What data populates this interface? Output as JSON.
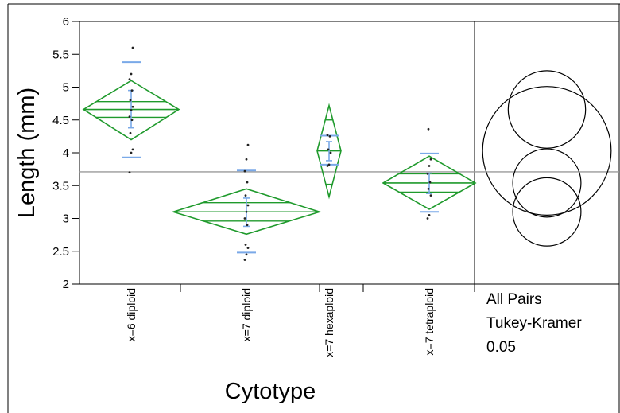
{
  "chart_data": {
    "type": "scatter",
    "xlabel": "Cytotype",
    "ylabel": "Length (mm)",
    "ylim": [
      2,
      6
    ],
    "yticks": [
      "2",
      "2.5",
      "3",
      "3.5",
      "4",
      "4.5",
      "5",
      "5.5",
      "6"
    ],
    "categories": [
      "x=6 diploid",
      "x=7 diploid",
      "x=7 hexaploid",
      "x=7 tetraploid"
    ],
    "grand_mean": 3.71,
    "groups": [
      {
        "name": "x=6 diploid",
        "mean": 4.66,
        "ci": [
          4.2,
          5.1
        ],
        "overlap_marks": [
          4.54,
          4.78
        ],
        "sd_bars": [
          3.93,
          5.38
        ],
        "se_bars": [
          4.38,
          4.95
        ],
        "points": [
          3.7,
          4.0,
          4.05,
          4.3,
          4.5,
          4.55,
          4.65,
          4.7,
          4.8,
          4.95,
          5.12,
          5.2,
          5.6
        ]
      },
      {
        "name": "x=7 diploid",
        "mean": 3.1,
        "ci": [
          2.76,
          3.45
        ],
        "overlap_marks": [
          2.96,
          3.24
        ],
        "sd_bars": [
          2.48,
          3.73
        ],
        "se_bars": [
          2.88,
          3.31
        ],
        "points": [
          2.37,
          2.45,
          2.55,
          2.6,
          2.9,
          3.0,
          3.1,
          3.2,
          3.35,
          3.55,
          3.72,
          3.9,
          4.12
        ]
      },
      {
        "name": "x=7 hexaploid",
        "mean": 4.03,
        "ci": [
          3.33,
          4.72
        ],
        "overlap_marks": [
          3.52,
          4.5
        ],
        "sd_bars": [
          3.82,
          4.26
        ],
        "se_bars": [
          3.88,
          4.17
        ],
        "points": [
          3.8,
          3.82,
          4.0,
          4.05,
          4.25,
          4.27
        ]
      },
      {
        "name": "x=7 tetraploid",
        "mean": 3.54,
        "ci": [
          3.14,
          3.95
        ],
        "overlap_marks": [
          3.4,
          3.68
        ],
        "sd_bars": [
          3.1,
          3.99
        ],
        "se_bars": [
          3.38,
          3.69
        ],
        "points": [
          3.0,
          3.05,
          3.35,
          3.45,
          3.55,
          3.68,
          3.8,
          3.9,
          4.36
        ]
      }
    ],
    "comparison_circles": [
      {
        "center": 4.66,
        "radius": 0.59
      },
      {
        "center": 4.03,
        "radius": 0.98
      },
      {
        "center": 3.54,
        "radius": 0.52
      },
      {
        "center": 3.1,
        "radius": 0.52
      }
    ],
    "comparison_labels": [
      "All Pairs",
      "Tukey-Kramer",
      "0.05"
    ],
    "colors": {
      "diamond": "#1f9a2c",
      "bars": "#7aa9e8",
      "points": "#222222",
      "grand_mean": "#9a9a9a",
      "axis": "#000000"
    }
  }
}
